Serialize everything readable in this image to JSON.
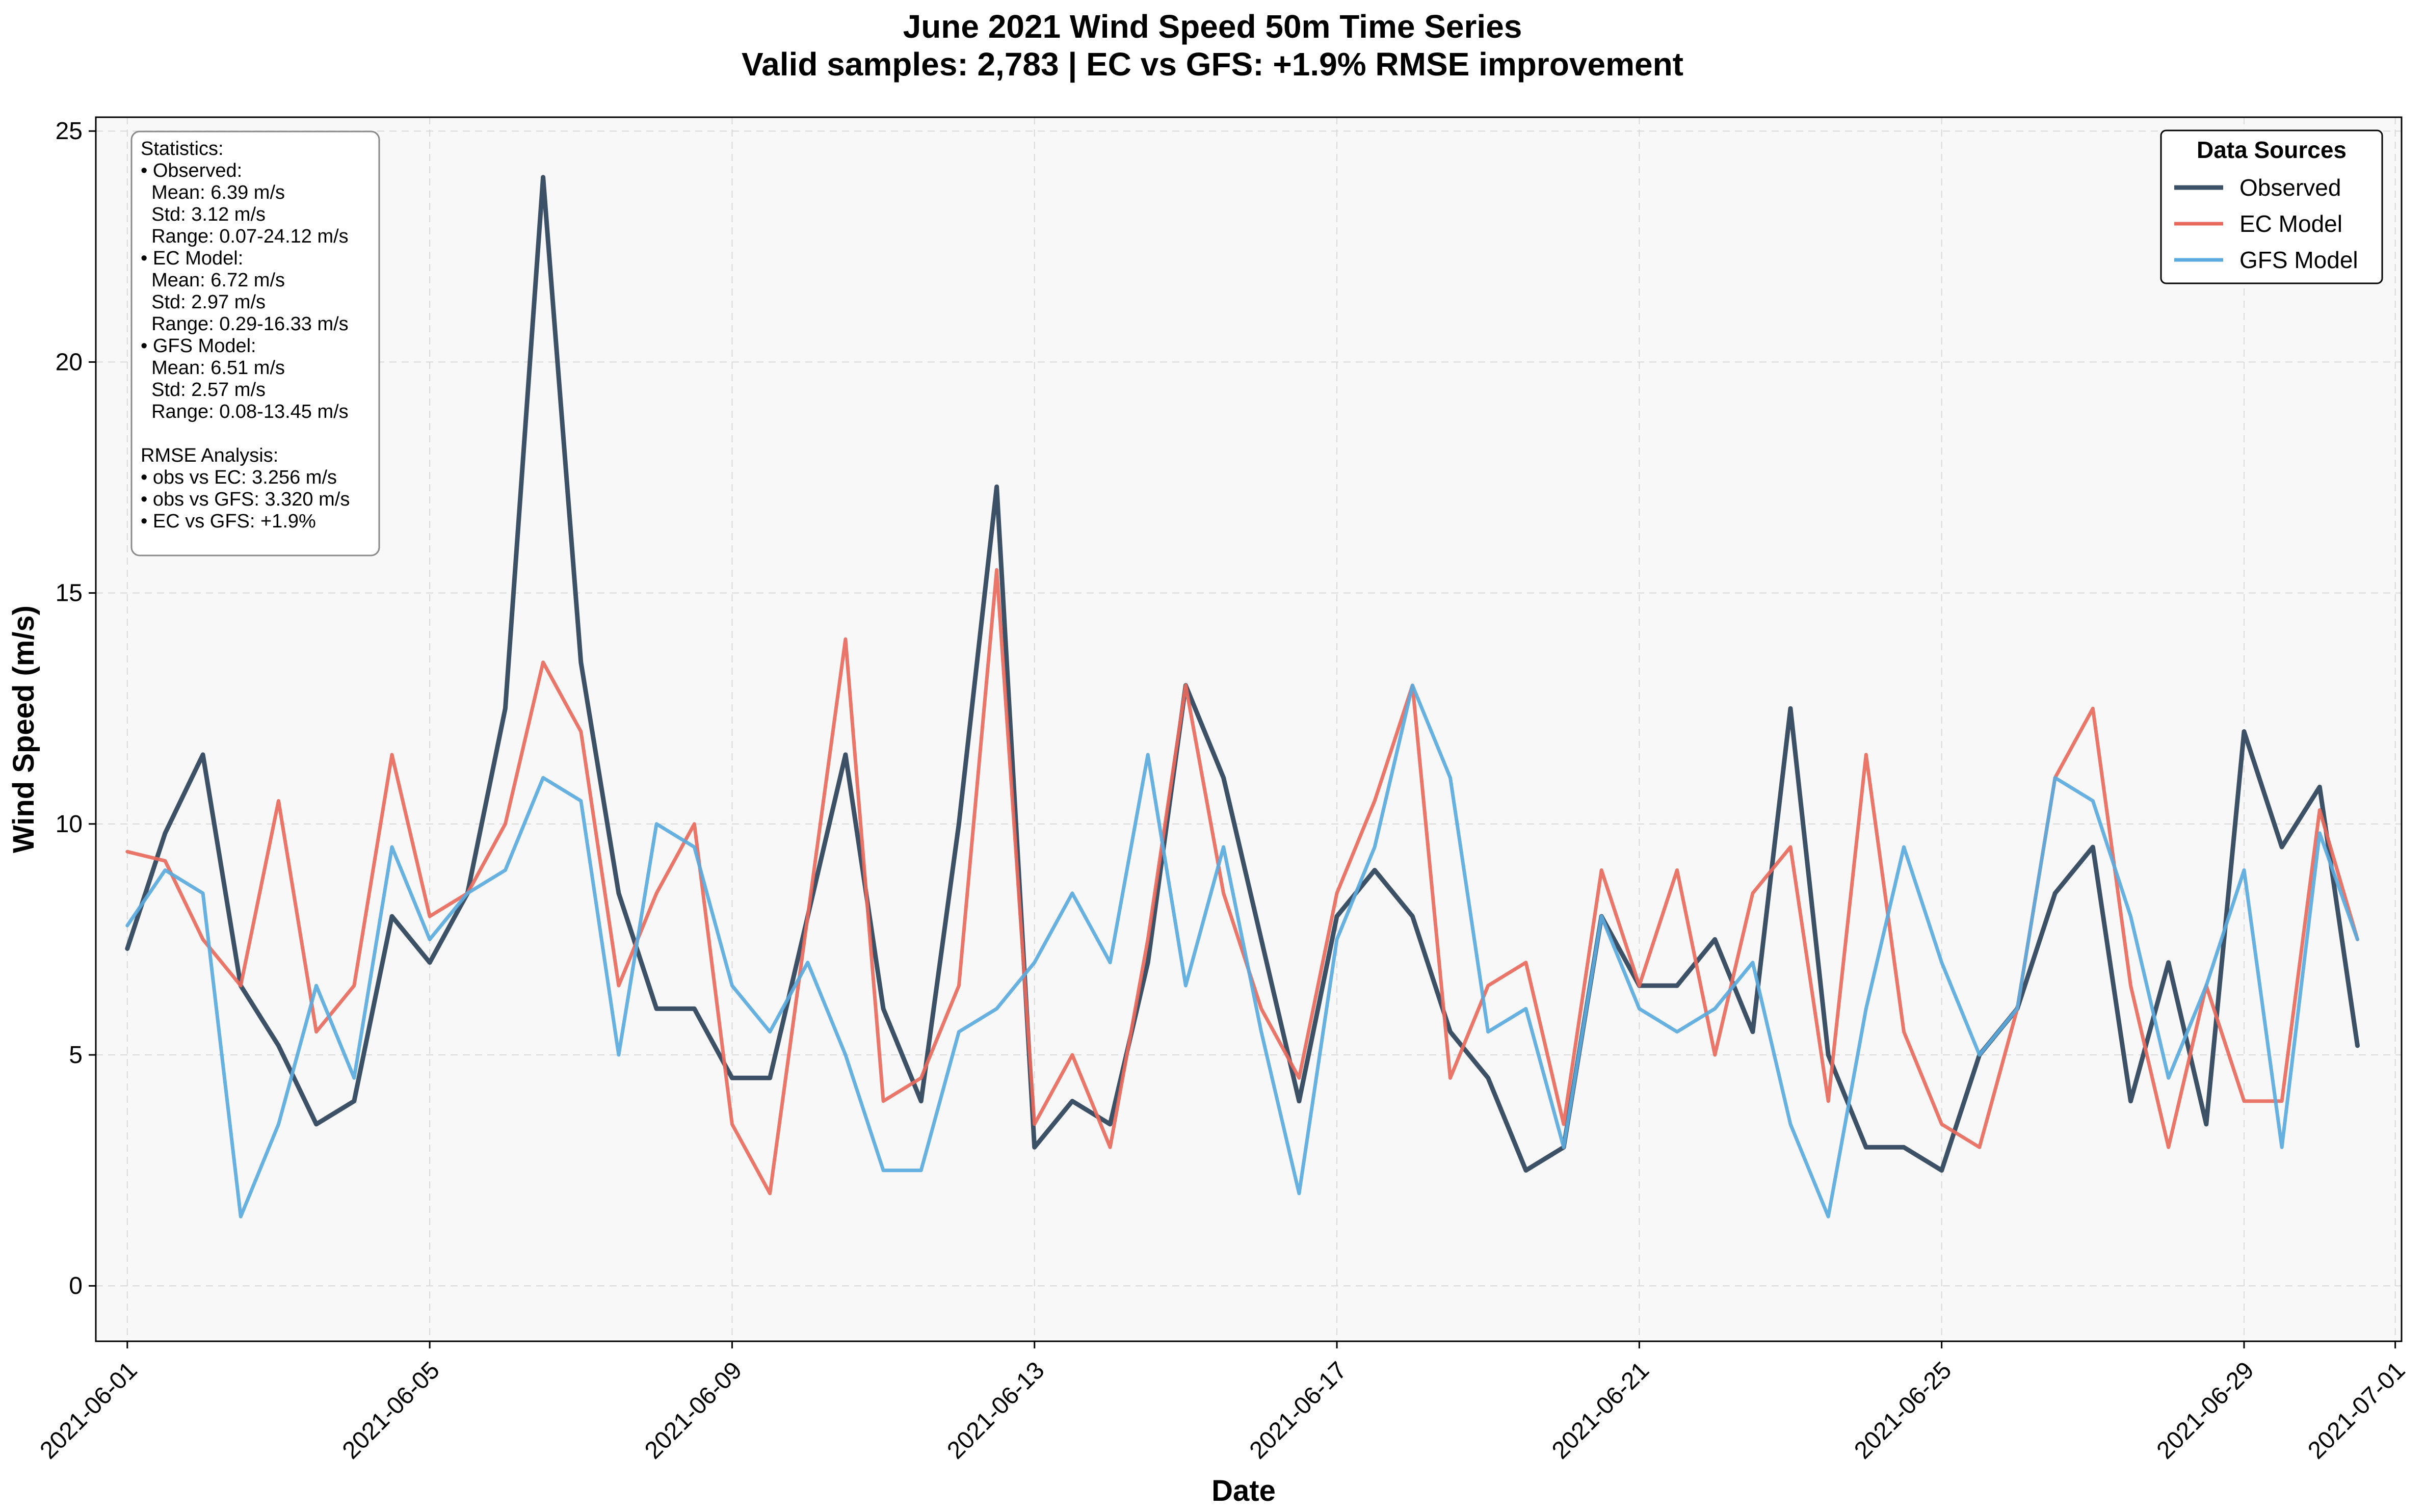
{
  "chart_data": {
    "type": "line",
    "title": "June 2021 Wind Speed 50m Time Series",
    "subtitle": "Valid samples: 2,783 | EC vs GFS: +1.9% RMSE improvement",
    "xlabel": "Date",
    "ylabel": "Wind Speed (m/s)",
    "x_range": [
      "2021-05-31T14:00",
      "2021-07-01T02:00"
    ],
    "xticks": [
      "2021-06-01",
      "2021-06-05",
      "2021-06-09",
      "2021-06-13",
      "2021-06-17",
      "2021-06-21",
      "2021-06-25",
      "2021-06-29",
      "2021-07-01"
    ],
    "ylim": [
      -1.2,
      25.3
    ],
    "yticks": [
      0,
      5,
      10,
      15,
      20,
      25
    ],
    "grid": true,
    "legend": {
      "title": "Data Sources",
      "placement": "top-right"
    },
    "x": [
      "2021-06-01T00",
      "2021-06-01T12",
      "2021-06-02T00",
      "2021-06-02T12",
      "2021-06-03T00",
      "2021-06-03T12",
      "2021-06-04T00",
      "2021-06-04T12",
      "2021-06-05T00",
      "2021-06-05T12",
      "2021-06-06T00",
      "2021-06-06T12",
      "2021-06-07T00",
      "2021-06-07T12",
      "2021-06-08T00",
      "2021-06-08T12",
      "2021-06-09T00",
      "2021-06-09T12",
      "2021-06-10T00",
      "2021-06-10T12",
      "2021-06-11T00",
      "2021-06-11T12",
      "2021-06-12T00",
      "2021-06-12T12",
      "2021-06-13T00",
      "2021-06-13T12",
      "2021-06-14T00",
      "2021-06-14T12",
      "2021-06-15T00",
      "2021-06-15T12",
      "2021-06-16T00",
      "2021-06-16T12",
      "2021-06-17T00",
      "2021-06-17T12",
      "2021-06-18T00",
      "2021-06-18T12",
      "2021-06-19T00",
      "2021-06-19T12",
      "2021-06-20T00",
      "2021-06-20T12",
      "2021-06-21T00",
      "2021-06-21T12",
      "2021-06-22T00",
      "2021-06-22T12",
      "2021-06-23T00",
      "2021-06-23T12",
      "2021-06-24T00",
      "2021-06-24T12",
      "2021-06-25T00",
      "2021-06-25T12",
      "2021-06-26T00",
      "2021-06-26T12",
      "2021-06-27T00",
      "2021-06-27T12",
      "2021-06-28T00",
      "2021-06-28T12",
      "2021-06-29T00",
      "2021-06-29T12",
      "2021-06-30T00",
      "2021-06-30T12"
    ],
    "series": [
      {
        "name": "Observed",
        "color": "#3d5166",
        "values": [
          7.3,
          9.8,
          11.5,
          6.5,
          5.2,
          3.5,
          4.0,
          8.0,
          7.0,
          8.5,
          12.5,
          24.0,
          13.5,
          8.5,
          6.0,
          6.0,
          4.5,
          4.5,
          8.0,
          11.5,
          6.0,
          4.0,
          10.0,
          17.3,
          3.0,
          4.0,
          3.5,
          7.0,
          13.0,
          11.0,
          7.5,
          4.0,
          8.0,
          9.0,
          8.0,
          5.5,
          4.5,
          2.5,
          3.0,
          8.0,
          6.5,
          6.5,
          7.5,
          5.5,
          12.5,
          5.0,
          3.0,
          3.0,
          2.5,
          5.0,
          6.0,
          8.5,
          9.5,
          4.0,
          7.0,
          3.5,
          12.0,
          9.5,
          10.8,
          5.2
        ]
      },
      {
        "name": "EC Model",
        "color": "#e8695c",
        "values": [
          9.4,
          9.2,
          7.5,
          6.5,
          10.5,
          5.5,
          6.5,
          11.5,
          8.0,
          8.5,
          10.0,
          13.5,
          12.0,
          6.5,
          8.5,
          10.0,
          3.5,
          2.0,
          8.0,
          14.0,
          4.0,
          4.5,
          6.5,
          15.5,
          3.5,
          5.0,
          3.0,
          7.5,
          13.0,
          8.5,
          6.0,
          4.5,
          8.5,
          10.5,
          13.0,
          4.5,
          6.5,
          7.0,
          3.5,
          9.0,
          6.5,
          9.0,
          5.0,
          8.5,
          9.5,
          4.0,
          11.5,
          5.5,
          3.5,
          3.0,
          6.0,
          11.0,
          12.5,
          6.5,
          3.0,
          6.5,
          4.0,
          4.0,
          10.3,
          7.5
        ]
      },
      {
        "name": "GFS Model",
        "color": "#5aaadd",
        "values": [
          7.8,
          9.0,
          8.5,
          1.5,
          3.5,
          6.5,
          4.5,
          9.5,
          7.5,
          8.5,
          9.0,
          11.0,
          10.5,
          5.0,
          10.0,
          9.5,
          6.5,
          5.5,
          7.0,
          5.0,
          2.5,
          2.5,
          5.5,
          6.0,
          7.0,
          8.5,
          7.0,
          11.5,
          6.5,
          9.5,
          5.5,
          2.0,
          7.5,
          9.5,
          13.0,
          11.0,
          5.5,
          6.0,
          3.0,
          8.0,
          6.0,
          5.5,
          6.0,
          7.0,
          3.5,
          1.5,
          6.0,
          9.5,
          7.0,
          5.0,
          6.0,
          11.0,
          10.5,
          8.0,
          4.5,
          6.5,
          9.0,
          3.0,
          9.8,
          7.5
        ]
      }
    ],
    "statistics_box": [
      "Statistics:",
      "• Observed:",
      "  Mean: 6.39 m/s",
      "  Std: 3.12 m/s",
      "  Range: 0.07-24.12 m/s",
      "• EC Model:",
      "  Mean: 6.72 m/s",
      "  Std: 2.97 m/s",
      "  Range: 0.29-16.33 m/s",
      "• GFS Model:",
      "  Mean: 6.51 m/s",
      "  Std: 2.57 m/s",
      "  Range: 0.08-13.45 m/s",
      "",
      "RMSE Analysis:",
      "• obs vs EC: 3.256 m/s",
      "• obs vs GFS: 3.320 m/s",
      "• EC vs GFS: +1.9%"
    ]
  }
}
